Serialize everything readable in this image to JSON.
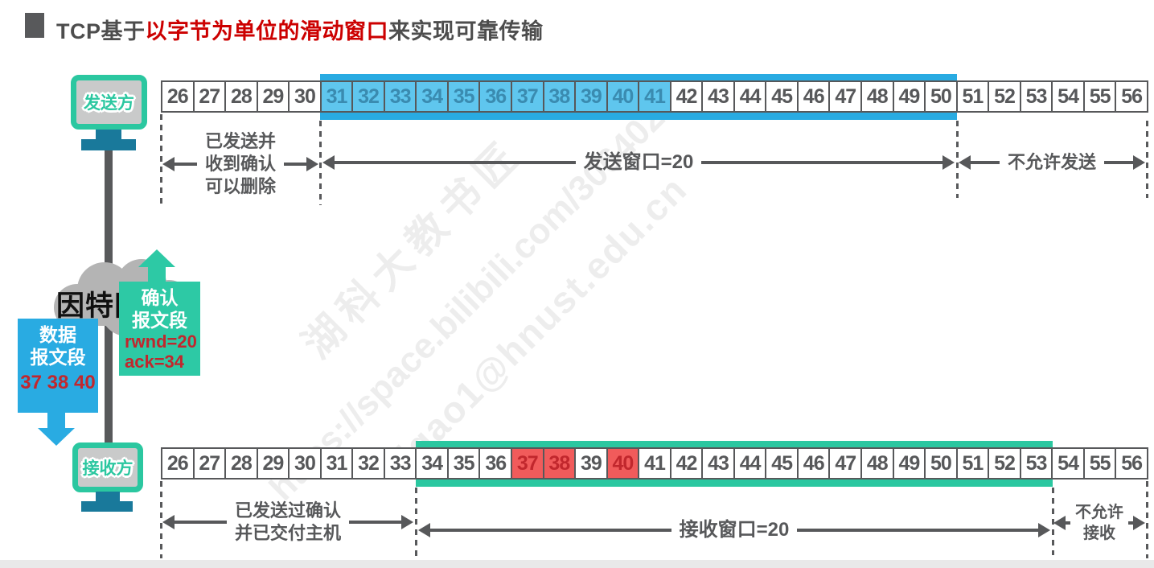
{
  "title": {
    "prefix": "TCP基于",
    "highlight": "以字节为单位的滑动窗口",
    "suffix": "来实现可靠传输"
  },
  "sender": {
    "device_label": "发送方",
    "row": {
      "start": 26,
      "end": 56,
      "window_start": 31,
      "window_end": 50,
      "sent_unacked_start": 31,
      "sent_unacked_end": 41,
      "left_label": [
        "已发送并",
        "收到确认",
        "可以删除"
      ],
      "window_label": "发送窗口=20",
      "right_label": "不允许发送"
    }
  },
  "receiver": {
    "device_label": "接收方",
    "row": {
      "start": 26,
      "end": 56,
      "window_start": 34,
      "window_end": 53,
      "received_out_of_order": [
        37,
        38,
        40
      ],
      "left_label": [
        "已发送过确认",
        "并已交付主机"
      ],
      "window_label": "接收窗口=20",
      "right_label": [
        "不允许",
        "接收"
      ]
    }
  },
  "internet_label": "因特网",
  "ack_segment": {
    "title_lines": [
      "确认",
      "报文段"
    ],
    "fields": [
      "rwnd=20",
      "ack=34"
    ]
  },
  "data_segment": {
    "title_lines": [
      "数据",
      "报文段"
    ],
    "bytes": "37 38 40"
  },
  "watermarks": {
    "line1": "湖科大教书匠",
    "line2": "https://space.bilibili.com/306402",
    "line3": "jgao1@hnust.edu.cn"
  },
  "colors": {
    "teal": "#2BC7A0",
    "blue_band": "#29ABE2",
    "light_blue_cell": "#5FC6EE",
    "red_cell": "#F15B5B",
    "dark_red_text": "#C1272D",
    "dark_gray": "#58595B",
    "cloud_gray": "#B4B4B4",
    "title_red": "#CC0000"
  }
}
